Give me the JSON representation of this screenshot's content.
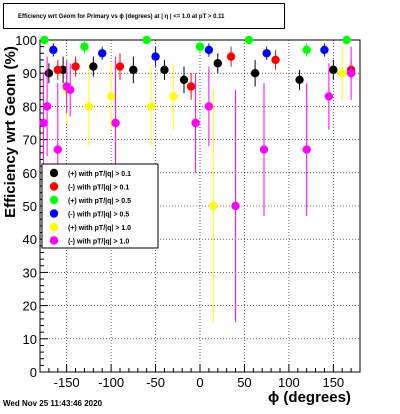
{
  "title": "Efficiency wrt Geom for Primary vs ϕ (degrees) at | η | <= 1.0 at pT > 0.11",
  "timestamp": "Wed Nov 25 11:43:46 2020",
  "chart_data": {
    "type": "scatter",
    "title": "Efficiency wrt Geom for Primary vs ϕ (degrees) at | η | <= 1.0 at pT > 0.11",
    "xlabel": "ϕ (degrees)",
    "ylabel": "Efficiency wrt Geom (%)",
    "xlim": [
      -180,
      180
    ],
    "ylim": [
      0,
      100
    ],
    "xticks": [
      -150,
      -100,
      -50,
      0,
      50,
      100,
      150
    ],
    "yticks": [
      0,
      10,
      20,
      30,
      40,
      50,
      60,
      70,
      80,
      90,
      100
    ],
    "grid": true,
    "legend_position": "left-middle",
    "series": [
      {
        "name": "(+) with pT/|q| > 0.1",
        "color": "#000000",
        "points": [
          {
            "x": -170,
            "y": 90,
            "err": 3
          },
          {
            "x": -154,
            "y": 91,
            "err": 4
          },
          {
            "x": -120,
            "y": 92,
            "err": 3
          },
          {
            "x": -75,
            "y": 91,
            "err": 4
          },
          {
            "x": -40,
            "y": 91,
            "err": 3
          },
          {
            "x": -18,
            "y": 88,
            "err": 4
          },
          {
            "x": 20,
            "y": 93,
            "err": 3
          },
          {
            "x": 62,
            "y": 90,
            "err": 4
          },
          {
            "x": 112,
            "y": 88,
            "err": 3
          },
          {
            "x": 150,
            "y": 91,
            "err": 3
          }
        ]
      },
      {
        "name": "(-) with pT/|q| > 0.1",
        "color": "#ff0000",
        "points": [
          {
            "x": -160,
            "y": 91,
            "err": 3
          },
          {
            "x": -140,
            "y": 92,
            "err": 3
          },
          {
            "x": -90,
            "y": 92,
            "err": 4
          },
          {
            "x": -10,
            "y": 86,
            "err": 4
          },
          {
            "x": 35,
            "y": 95,
            "err": 3
          },
          {
            "x": 85,
            "y": 94,
            "err": 3
          },
          {
            "x": 170,
            "y": 91,
            "err": 3
          }
        ]
      },
      {
        "name": "(+) with pT/|q| > 0.5",
        "color": "#00ff00",
        "points": [
          {
            "x": -175,
            "y": 100,
            "err": 0
          },
          {
            "x": -130,
            "y": 98,
            "err": 2
          },
          {
            "x": -60,
            "y": 100,
            "err": 0
          },
          {
            "x": 0,
            "y": 98,
            "err": 2
          },
          {
            "x": 55,
            "y": 100,
            "err": 0
          },
          {
            "x": 120,
            "y": 97,
            "err": 2
          },
          {
            "x": 165,
            "y": 100,
            "err": 0
          }
        ]
      },
      {
        "name": "(-) with pT/|q| > 0.5",
        "color": "#0000ff",
        "points": [
          {
            "x": -165,
            "y": 97,
            "err": 2
          },
          {
            "x": -110,
            "y": 96,
            "err": 2
          },
          {
            "x": -50,
            "y": 95,
            "err": 3
          },
          {
            "x": 10,
            "y": 97,
            "err": 2
          },
          {
            "x": 75,
            "y": 96,
            "err": 2
          },
          {
            "x": 140,
            "y": 97,
            "err": 2
          }
        ]
      },
      {
        "name": "(+) with pT/|q| > 1.0",
        "color": "#ffff00",
        "points": [
          {
            "x": -150,
            "y": 85,
            "err": 10
          },
          {
            "x": -125,
            "y": 80,
            "err": 12
          },
          {
            "x": -100,
            "y": 83,
            "err": 10
          },
          {
            "x": -55,
            "y": 80,
            "err": 12
          },
          {
            "x": -30,
            "y": 83,
            "err": 10
          },
          {
            "x": 15,
            "y": 50,
            "err": 35
          },
          {
            "x": 160,
            "y": 90,
            "err": 8
          }
        ]
      },
      {
        "name": "(-) with pT/|q| > 1.0",
        "color": "#ff00ff",
        "points": [
          {
            "x": -176,
            "y": 75,
            "err": 15
          },
          {
            "x": -172,
            "y": 80,
            "err": 15
          },
          {
            "x": -160,
            "y": 67,
            "err": 20
          },
          {
            "x": -150,
            "y": 86,
            "err": 8
          },
          {
            "x": -146,
            "y": 85,
            "err": 8
          },
          {
            "x": -95,
            "y": 75,
            "err": 20
          },
          {
            "x": -5,
            "y": 75,
            "err": 15
          },
          {
            "x": 10,
            "y": 80,
            "err": 12
          },
          {
            "x": 40,
            "y": 50,
            "err": 35
          },
          {
            "x": 72,
            "y": 67,
            "err": 20
          },
          {
            "x": 120,
            "y": 67,
            "err": 20
          },
          {
            "x": 145,
            "y": 83,
            "err": 10
          },
          {
            "x": 170,
            "y": 90,
            "err": 8
          }
        ]
      }
    ]
  }
}
